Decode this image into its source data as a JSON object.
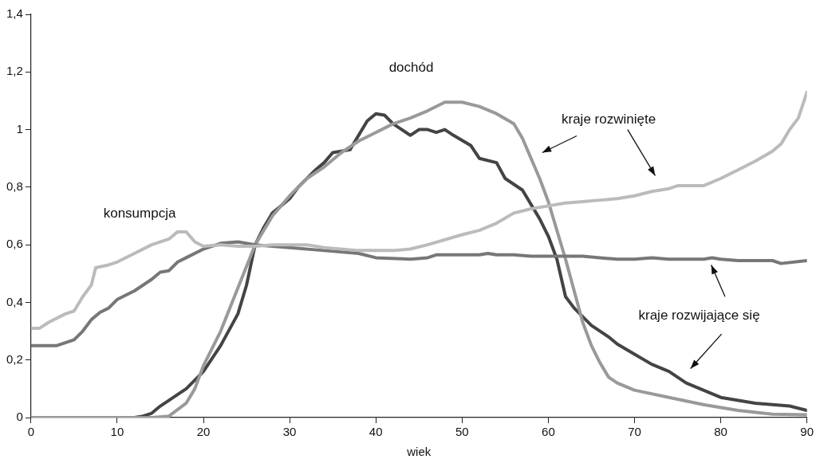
{
  "chart_data": {
    "type": "line",
    "xlabel": "wiek",
    "xlim": [
      0,
      90
    ],
    "xticks": [
      0,
      10,
      20,
      30,
      40,
      50,
      60,
      70,
      80,
      90
    ],
    "ylim": [
      0,
      1.4
    ],
    "yticks": [
      0,
      {
        "value": 0.2,
        "label": "0,2"
      },
      {
        "value": 0.4,
        "label": "0,4"
      },
      {
        "value": 0.6,
        "label": "0,6"
      },
      {
        "value": 0.8,
        "label": "0,8"
      },
      1,
      {
        "value": 1.2,
        "label": "1,2"
      },
      {
        "value": 1.4,
        "label": "1,4"
      }
    ],
    "grid": false,
    "legend": false,
    "marker": "none",
    "line_style": "solid",
    "series": [
      {
        "color": "#bbbbbb",
        "x": [
          0,
          1,
          2,
          4,
          5,
          6,
          7,
          7.5,
          9,
          10,
          12,
          14,
          16,
          17,
          18,
          19,
          20,
          22,
          24,
          26,
          28,
          30,
          32,
          34,
          38,
          42,
          44,
          46,
          50,
          52,
          54,
          56,
          58,
          60,
          62,
          64,
          66,
          68,
          70,
          72,
          74,
          75,
          78,
          80,
          82,
          84,
          86,
          87,
          88,
          89,
          90
        ],
        "values": [
          0.31,
          0.31,
          0.33,
          0.36,
          0.37,
          0.42,
          0.46,
          0.52,
          0.53,
          0.54,
          0.57,
          0.6,
          0.62,
          0.645,
          0.645,
          0.61,
          0.595,
          0.6,
          0.595,
          0.595,
          0.6,
          0.6,
          0.6,
          0.59,
          0.58,
          0.58,
          0.585,
          0.6,
          0.635,
          0.65,
          0.675,
          0.71,
          0.725,
          0.735,
          0.745,
          0.75,
          0.755,
          0.76,
          0.77,
          0.785,
          0.795,
          0.805,
          0.805,
          0.83,
          0.86,
          0.89,
          0.925,
          0.95,
          1.0,
          1.04,
          1.13
        ]
      },
      {
        "color": "#777777",
        "x": [
          0,
          3,
          5,
          6,
          7,
          8,
          9,
          10,
          12,
          14,
          15,
          16,
          17,
          18,
          20,
          22,
          24,
          26,
          28,
          30,
          34,
          38,
          40,
          44,
          46,
          47,
          52,
          53,
          54,
          56,
          58,
          60,
          64,
          66,
          68,
          70,
          72,
          74,
          78,
          79,
          80,
          82,
          86,
          87,
          90
        ],
        "values": [
          0.25,
          0.25,
          0.27,
          0.3,
          0.34,
          0.365,
          0.38,
          0.41,
          0.44,
          0.48,
          0.505,
          0.51,
          0.54,
          0.555,
          0.585,
          0.605,
          0.61,
          0.6,
          0.595,
          0.59,
          0.58,
          0.57,
          0.555,
          0.55,
          0.555,
          0.565,
          0.565,
          0.57,
          0.565,
          0.565,
          0.56,
          0.56,
          0.56,
          0.555,
          0.55,
          0.55,
          0.555,
          0.55,
          0.55,
          0.555,
          0.55,
          0.545,
          0.545,
          0.535,
          0.545
        ]
      },
      {
        "color": "#999999",
        "x": [
          0,
          14,
          16,
          18,
          19,
          20,
          22,
          24,
          26,
          28,
          30,
          32,
          34,
          36,
          38,
          40,
          42,
          44,
          46,
          48,
          50,
          52,
          54,
          56,
          57,
          58,
          59,
          60,
          62,
          64,
          65,
          66,
          67,
          68,
          70,
          74,
          78,
          82,
          86,
          90
        ],
        "values": [
          0,
          0,
          0.005,
          0.05,
          0.1,
          0.18,
          0.3,
          0.45,
          0.6,
          0.7,
          0.77,
          0.83,
          0.87,
          0.92,
          0.96,
          0.99,
          1.02,
          1.04,
          1.065,
          1.095,
          1.095,
          1.08,
          1.055,
          1.02,
          0.97,
          0.9,
          0.83,
          0.75,
          0.55,
          0.33,
          0.25,
          0.19,
          0.14,
          0.12,
          0.095,
          0.07,
          0.045,
          0.025,
          0.012,
          0.01
        ]
      },
      {
        "color": "#444444",
        "x": [
          0,
          12,
          13,
          14,
          15,
          17,
          18,
          20,
          22,
          24,
          25,
          26,
          27,
          28,
          30,
          31,
          33,
          34,
          35,
          37,
          39,
          40,
          41,
          42,
          44,
          45,
          46,
          47,
          48,
          49,
          51,
          52,
          54,
          55,
          57,
          59,
          60,
          61,
          62,
          63,
          65,
          67,
          68,
          70,
          72,
          74,
          76,
          78,
          80,
          84,
          86,
          88,
          90
        ],
        "values": [
          0,
          0,
          0.005,
          0.015,
          0.04,
          0.08,
          0.1,
          0.16,
          0.25,
          0.36,
          0.46,
          0.6,
          0.66,
          0.71,
          0.76,
          0.8,
          0.86,
          0.885,
          0.92,
          0.93,
          1.03,
          1.055,
          1.05,
          1.02,
          0.98,
          1.0,
          1.0,
          0.99,
          1.0,
          0.98,
          0.945,
          0.9,
          0.885,
          0.83,
          0.79,
          0.69,
          0.63,
          0.55,
          0.42,
          0.38,
          0.32,
          0.28,
          0.255,
          0.22,
          0.185,
          0.16,
          0.12,
          0.095,
          0.07,
          0.05,
          0.045,
          0.04,
          0.025
        ]
      }
    ],
    "annotations": [
      "konsumpcja",
      "dochód",
      "kraje rozwinięte",
      "kraje rozwijające się"
    ]
  }
}
